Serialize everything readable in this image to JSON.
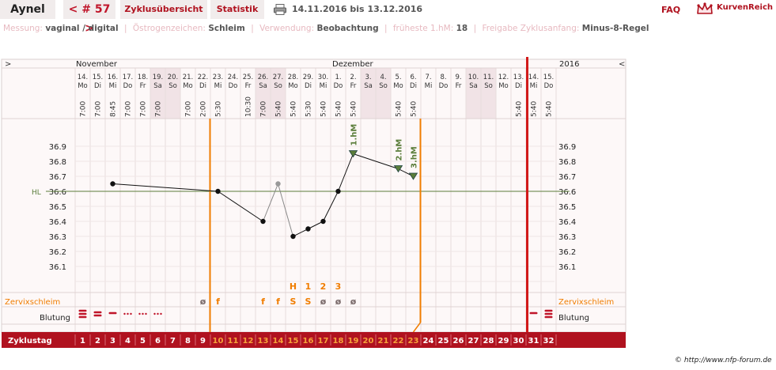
{
  "header": {
    "name": "Aynel",
    "cycle_label": "< # 57 >",
    "overview_label": "Zyklusübersicht",
    "stats_label": "Statistik",
    "date_range": "14.11.2016 bis 13.12.2016",
    "faq_label": "FAQ",
    "brand": "KurvenReich"
  },
  "info": {
    "messung_label": "Messung:",
    "messung_value": "vaginal / digital",
    "oestrogen_label": "Östrogenzeichen:",
    "oestrogen_value": "Schleim",
    "verwendung_label": "Verwendung:",
    "verwendung_value": "Beobachtung",
    "frueheste_label": "früheste 1.hM:",
    "frueheste_value": "18",
    "freigabe_label": "Freigabe Zyklusanfang:",
    "freigabe_value": "Minus-8-Regel"
  },
  "chart_data": {
    "type": "line",
    "months": [
      {
        "label": "November",
        "start_day": 1
      },
      {
        "label": "Dezember",
        "start_day": 18
      }
    ],
    "year": "2016",
    "nav_left": ">",
    "nav_right": "<",
    "dates": [
      "14.",
      "15.",
      "16.",
      "17.",
      "18.",
      "19.",
      "20.",
      "21.",
      "22.",
      "23.",
      "24.",
      "25.",
      "26.",
      "27.",
      "28.",
      "29.",
      "30.",
      "1.",
      "2.",
      "3.",
      "4.",
      "5.",
      "6.",
      "7.",
      "8.",
      "9.",
      "10.",
      "11.",
      "12.",
      "13.",
      "14.",
      "15."
    ],
    "weekdays": [
      "Mo",
      "Di",
      "Mi",
      "Do",
      "Fr",
      "Sa",
      "So",
      "Mo",
      "Di",
      "Mi",
      "Do",
      "Fr",
      "Sa",
      "So",
      "Mo",
      "Di",
      "Mi",
      "Do",
      "Fr",
      "Sa",
      "So",
      "Mo",
      "Di",
      "Mi",
      "Do",
      "Fr",
      "Sa",
      "So",
      "Mo",
      "Di",
      "Mi",
      "Do"
    ],
    "weekend_days": [
      6,
      7,
      13,
      14,
      20,
      21,
      27,
      28
    ],
    "times": [
      "7:00",
      "7:00",
      "8:45",
      "7:00",
      "7:00",
      "7:00",
      "",
      "7:00",
      "2:00",
      "",
      "5:30",
      "10:30",
      "7:00",
      "5:40",
      "5:40",
      "5:30",
      "5:40",
      "5:40",
      "5:40",
      "",
      "",
      "5:40",
      "5:40",
      "",
      "",
      "",
      "",
      "",
      "",
      "5:40",
      "5:40",
      "5:40"
    ],
    "time_days": [
      1,
      2,
      3,
      4,
      5,
      6,
      8,
      9,
      10,
      12,
      13,
      14,
      15,
      16,
      17,
      18,
      19,
      22,
      23,
      30,
      31,
      32
    ],
    "ylim": [
      36.0,
      37.0
    ],
    "y_ticks": [
      36.1,
      36.2,
      36.3,
      36.4,
      36.5,
      36.6,
      36.7,
      36.8,
      36.9
    ],
    "hl_label": "HL",
    "hl_value": 36.6,
    "points": [
      {
        "day": 3,
        "temp": 36.65,
        "excluded": false
      },
      {
        "day": 10,
        "temp": 36.6,
        "excluded": false
      },
      {
        "day": 13,
        "temp": 36.4,
        "excluded": false
      },
      {
        "day": 14,
        "temp": 36.65,
        "excluded": true
      },
      {
        "day": 15,
        "temp": 36.3,
        "excluded": false
      },
      {
        "day": 16,
        "temp": 36.35,
        "excluded": false
      },
      {
        "day": 17,
        "temp": 36.4,
        "excluded": false
      },
      {
        "day": 18,
        "temp": 36.6,
        "excluded": false
      },
      {
        "day": 19,
        "temp": 36.85,
        "excluded": false
      },
      {
        "day": 22,
        "temp": 36.75,
        "excluded": false
      },
      {
        "day": 23,
        "temp": 36.7,
        "excluded": false
      }
    ],
    "markers": [
      {
        "day": 19,
        "label": "1.hM"
      },
      {
        "day": 22,
        "label": "2.hM"
      },
      {
        "day": 23,
        "label": "3.hM"
      }
    ],
    "peak_row": [
      {
        "day": 15,
        "label": "H"
      },
      {
        "day": 16,
        "label": "1"
      },
      {
        "day": 17,
        "label": "2"
      },
      {
        "day": 18,
        "label": "3"
      }
    ],
    "row_labels": {
      "mucus": "Zervixschleim",
      "bleeding": "Blutung",
      "cycleday": "Zyklustag"
    },
    "mucus": [
      {
        "day": 9,
        "symbol": "ø"
      },
      {
        "day": 10,
        "symbol": "f"
      },
      {
        "day": 13,
        "symbol": "f"
      },
      {
        "day": 14,
        "symbol": "f"
      },
      {
        "day": 15,
        "symbol": "S"
      },
      {
        "day": 16,
        "symbol": "S"
      },
      {
        "day": 17,
        "symbol": "ø"
      },
      {
        "day": 18,
        "symbol": "ø"
      },
      {
        "day": 19,
        "symbol": "ø"
      }
    ],
    "bleeding": [
      {
        "day": 1,
        "level": 3
      },
      {
        "day": 2,
        "level": 2
      },
      {
        "day": 3,
        "level": 1
      },
      {
        "day": 4,
        "level": 0
      },
      {
        "day": 5,
        "level": 0
      },
      {
        "day": 6,
        "level": 0
      },
      {
        "day": 31,
        "level": 1
      },
      {
        "day": 32,
        "level": 3
      }
    ],
    "cycle_days": [
      1,
      2,
      3,
      4,
      5,
      6,
      7,
      8,
      9,
      10,
      11,
      12,
      13,
      14,
      15,
      16,
      17,
      18,
      19,
      20,
      21,
      22,
      23,
      24,
      25,
      26,
      27,
      28,
      29,
      30,
      31,
      32
    ],
    "infertile_start_day": 10,
    "infertile_end_day": 23,
    "cycle_end_day": 31,
    "colors": {
      "accent": "#b0121f",
      "orange": "#f07d00",
      "green": "#5a7d3a",
      "red_line": "#d21a1a",
      "cycle_bar": "#b0121f"
    },
    "copyright": "© http://www.nfp-forum.de"
  }
}
